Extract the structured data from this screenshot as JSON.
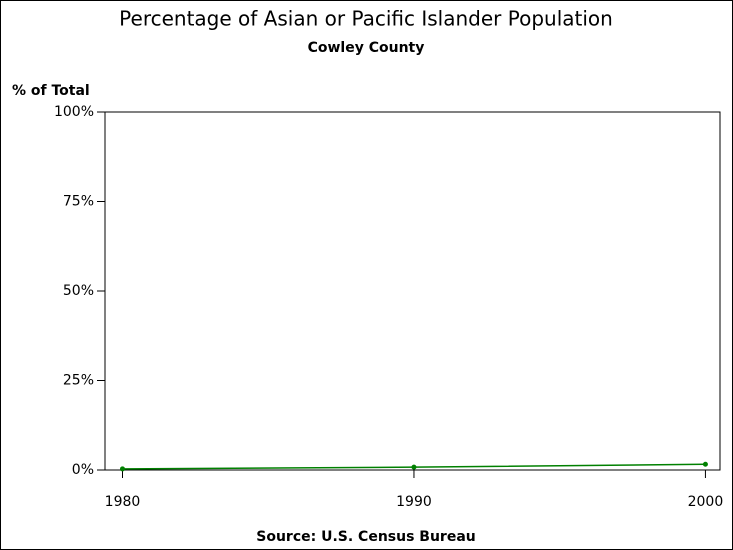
{
  "chart_data": {
    "type": "line",
    "title": "Percentage of Asian or Pacific Islander Population",
    "subtitle": "Cowley County",
    "y_label": "% of Total",
    "source": "Source: U.S. Census Bureau",
    "x": [
      1980,
      1990,
      2000
    ],
    "series": [
      {
        "name": "Asian or Pacific Islander",
        "color": "#008000",
        "values": [
          0.3,
          0.8,
          1.6
        ]
      }
    ],
    "xlim": [
      1979.4,
      2000.5
    ],
    "xticks": [
      1980,
      1990,
      2000
    ],
    "ylim": [
      0,
      100
    ],
    "yticks": [
      {
        "value": 0,
        "label": "0%"
      },
      {
        "value": 25,
        "label": "25%"
      },
      {
        "value": 50,
        "label": "50%"
      },
      {
        "value": 75,
        "label": "75%"
      },
      {
        "value": 100,
        "label": "100%"
      }
    ],
    "legend": false
  }
}
